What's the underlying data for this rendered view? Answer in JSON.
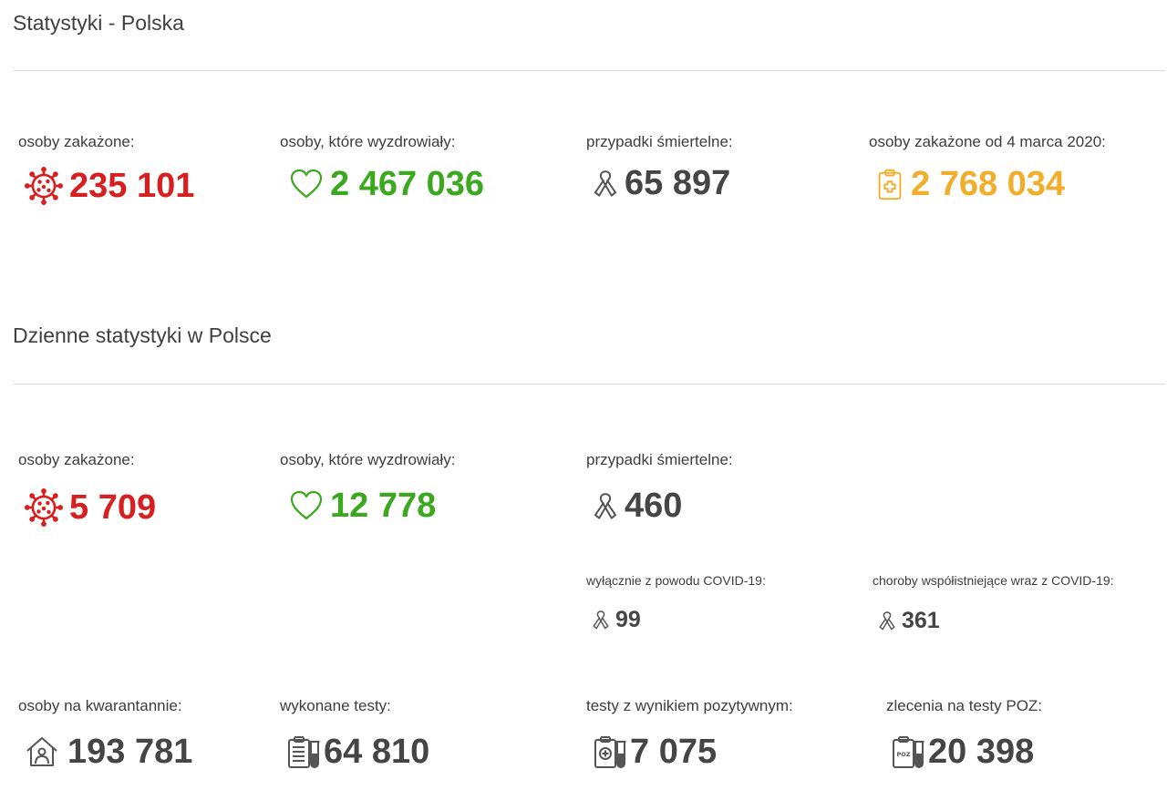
{
  "colors": {
    "red": "#d81e1e",
    "green": "#3ca81f",
    "gray": "#454545",
    "orange": "#f2ae2a"
  },
  "section_total": {
    "title": "Statystyki - Polska",
    "infected": {
      "label": "osoby zakażone:",
      "value": "235 101",
      "icon": "virus-icon"
    },
    "recovered": {
      "label": "osoby, które wyzdrowiały:",
      "value": "2 467 036",
      "icon": "heart-icon"
    },
    "deaths": {
      "label": "przypadki śmiertelne:",
      "value": "65 897",
      "icon": "ribbon-icon"
    },
    "infected_since": {
      "label": "osoby zakażone od 4 marca 2020:",
      "value": "2 768 034",
      "icon": "clipboard-medical-icon"
    }
  },
  "section_daily": {
    "title": "Dzienne statystyki w Polsce",
    "infected": {
      "label": "osoby zakażone:",
      "value": "5 709",
      "icon": "virus-icon"
    },
    "recovered": {
      "label": "osoby, które wyzdrowiały:",
      "value": "12 778",
      "icon": "heart-icon"
    },
    "deaths": {
      "label": "przypadki śmiertelne:",
      "value": "460",
      "icon": "ribbon-icon"
    },
    "deaths_covid_only": {
      "label": "wyłącznie z powodu COVID-19:",
      "value": "99",
      "icon": "ribbon-icon"
    },
    "deaths_comorbid": {
      "label": "choroby współistniejące wraz z COVID-19:",
      "value": "361",
      "icon": "ribbon-icon"
    },
    "quarantine": {
      "label": "osoby na kwarantannie:",
      "value": "193 781",
      "icon": "house-person-icon"
    },
    "tests_done": {
      "label": "wykonane testy:",
      "value": "64 810",
      "icon": "clipboard-test-tube-icon"
    },
    "tests_positive": {
      "label": "testy z wynikiem pozytywnym:",
      "value": "7 075",
      "icon": "clipboard-plus-test-tube-icon"
    },
    "poz_orders": {
      "label": "zlecenia na testy POZ:",
      "value": "20 398",
      "icon": "clipboard-poz-test-tube-icon"
    }
  }
}
